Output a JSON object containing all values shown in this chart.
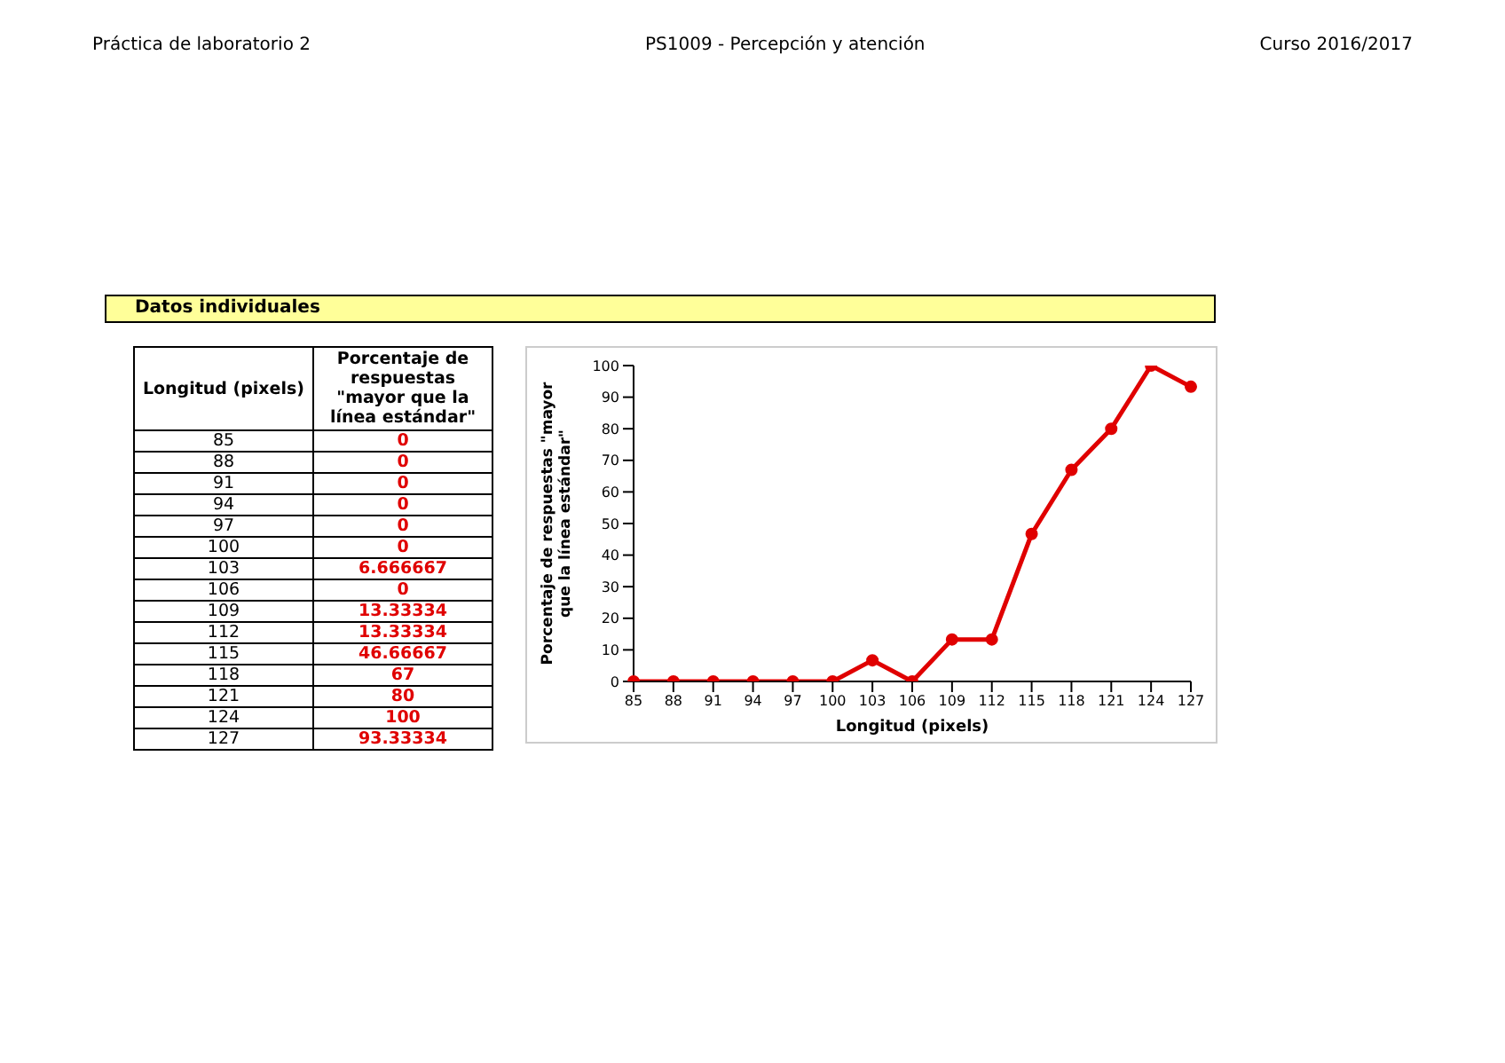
{
  "chart_data": [
    {
      "type": "heatmap",
      "title": "Datos individuales",
      "ylabel": "Longitud (pixels)",
      "annotations": [
        "Práctica de laboratorio 2",
        "PS1009 - Percepción y atención",
        "Curso 2016/2017"
      ],
      "categories": [
        "Porcentaje de respuestas \"mayor que la línea estándar\""
      ],
      "y_categories": [
        "85",
        "88",
        "91",
        "94",
        "97",
        "100",
        "103",
        "106",
        "109",
        "112",
        "115",
        "118",
        "121",
        "124",
        "127"
      ],
      "cells": [
        [
          0
        ],
        [
          0
        ],
        [
          0
        ],
        [
          0
        ],
        [
          0
        ],
        [
          0
        ],
        [
          6.666667
        ],
        [
          0
        ],
        [
          13.33334
        ],
        [
          13.33334
        ],
        [
          46.66667
        ],
        [
          67
        ],
        [
          80
        ],
        [
          100
        ],
        [
          93.33334
        ]
      ],
      "data_labels": true
    },
    {
      "type": "line",
      "xlabel": "Longitud (pixels)",
      "ylabel": "Porcentaje de respuestas \"mayor que la línea estándar\"",
      "categories": [
        "85",
        "88",
        "91",
        "94",
        "97",
        "100",
        "103",
        "106",
        "109",
        "112",
        "115",
        "118",
        "121",
        "124",
        "127"
      ],
      "series": [
        {
          "color": "#e00000",
          "values": [
            0,
            0,
            0,
            0,
            0,
            0,
            6.7,
            0,
            13.3,
            13.3,
            46.7,
            67,
            80,
            100,
            93.3
          ]
        }
      ],
      "ylim": [
        0,
        100
      ],
      "yticks": [
        0,
        10,
        20,
        30,
        40,
        50,
        60,
        70,
        80,
        90,
        100
      ],
      "legend": false,
      "marker": "circle",
      "line_style": "solid"
    }
  ]
}
